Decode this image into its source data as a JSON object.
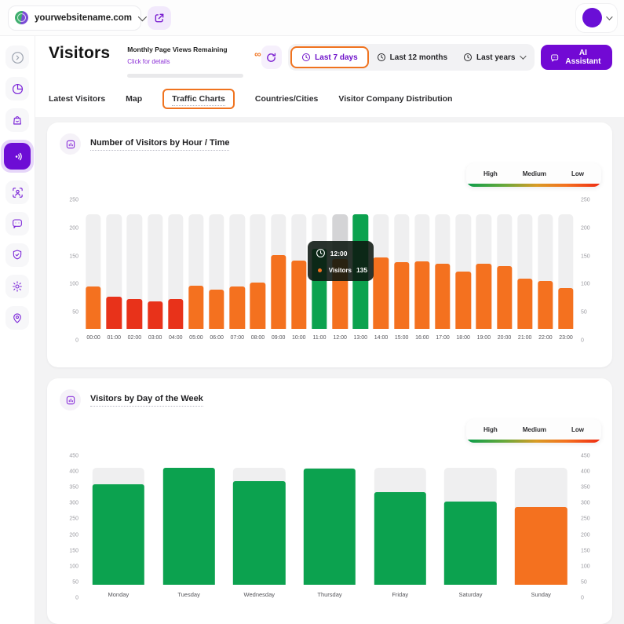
{
  "topbar": {
    "website": "yourwebsitename.com"
  },
  "page": {
    "title": "Visitors"
  },
  "quota": {
    "label": "Monthly Page Views Remaining",
    "link": "Click for details",
    "remaining": "∞"
  },
  "time_ranges": {
    "items": [
      {
        "label": "Last 7 days",
        "active": true
      },
      {
        "label": "Last 12 months",
        "active": false
      },
      {
        "label": "Last years",
        "active": false,
        "has_caret": true
      }
    ]
  },
  "ai_assistant": {
    "label": "AI Assistant"
  },
  "tabs": {
    "items": [
      {
        "label": "Latest Visitors"
      },
      {
        "label": "Map"
      },
      {
        "label": "Traffic Charts",
        "active": true
      },
      {
        "label": "Countries/Cities"
      },
      {
        "label": "Visitor Company Distribution"
      }
    ]
  },
  "legend": {
    "high": "High",
    "medium": "Medium",
    "low": "Low"
  },
  "colors": {
    "high": "#0ca24f",
    "medium": "#f4711f",
    "low": "#e8321a",
    "accent_purple": "#7209d4",
    "accent_orange": "#f0731f",
    "track": "#efeff0",
    "track_hover": "#d4d4d6"
  },
  "chart_data": [
    {
      "type": "bar",
      "title": "Number of Visitors by Hour / Time",
      "categories": [
        "00:00",
        "01:00",
        "02:00",
        "03:00",
        "04:00",
        "05:00",
        "06:00",
        "07:00",
        "08:00",
        "09:00",
        "10:00",
        "11:00",
        "12:00",
        "13:00",
        "14:00",
        "15:00",
        "16:00",
        "17:00",
        "18:00",
        "19:00",
        "20:00",
        "21:00",
        "22:00",
        "23:00"
      ],
      "values": [
        83,
        63,
        58,
        54,
        58,
        84,
        77,
        82,
        90,
        143,
        133,
        155,
        135,
        222,
        138,
        130,
        131,
        127,
        112,
        126,
        122,
        97,
        93,
        80
      ],
      "levels": [
        "medium",
        "low",
        "low",
        "low",
        "low",
        "medium",
        "medium",
        "medium",
        "medium",
        "medium",
        "medium",
        "high",
        "medium",
        "high",
        "medium",
        "medium",
        "medium",
        "medium",
        "medium",
        "medium",
        "medium",
        "medium",
        "medium",
        "medium"
      ],
      "ylim": [
        0,
        250
      ],
      "yticks": [
        0,
        50,
        100,
        150,
        200,
        250
      ],
      "track_max": 222,
      "hovered_index": 12,
      "tooltip": {
        "time": "12:00",
        "series": "Visitors",
        "value": "135"
      },
      "legend_position": "top-right",
      "grid": false
    },
    {
      "type": "bar",
      "title": "Visitors by Day of the Week",
      "categories": [
        "Monday",
        "Tuesday",
        "Wednesday",
        "Thursday",
        "Friday",
        "Saturday",
        "Sunday"
      ],
      "values": [
        352,
        410,
        362,
        405,
        325,
        290,
        272
      ],
      "levels": [
        "high",
        "high",
        "high",
        "high",
        "high",
        "high",
        "medium"
      ],
      "ylim": [
        0,
        450
      ],
      "yticks": [
        0,
        50,
        100,
        150,
        200,
        250,
        300,
        350,
        400,
        450
      ],
      "track_max": 410,
      "legend_position": "top-right",
      "grid": false
    }
  ]
}
